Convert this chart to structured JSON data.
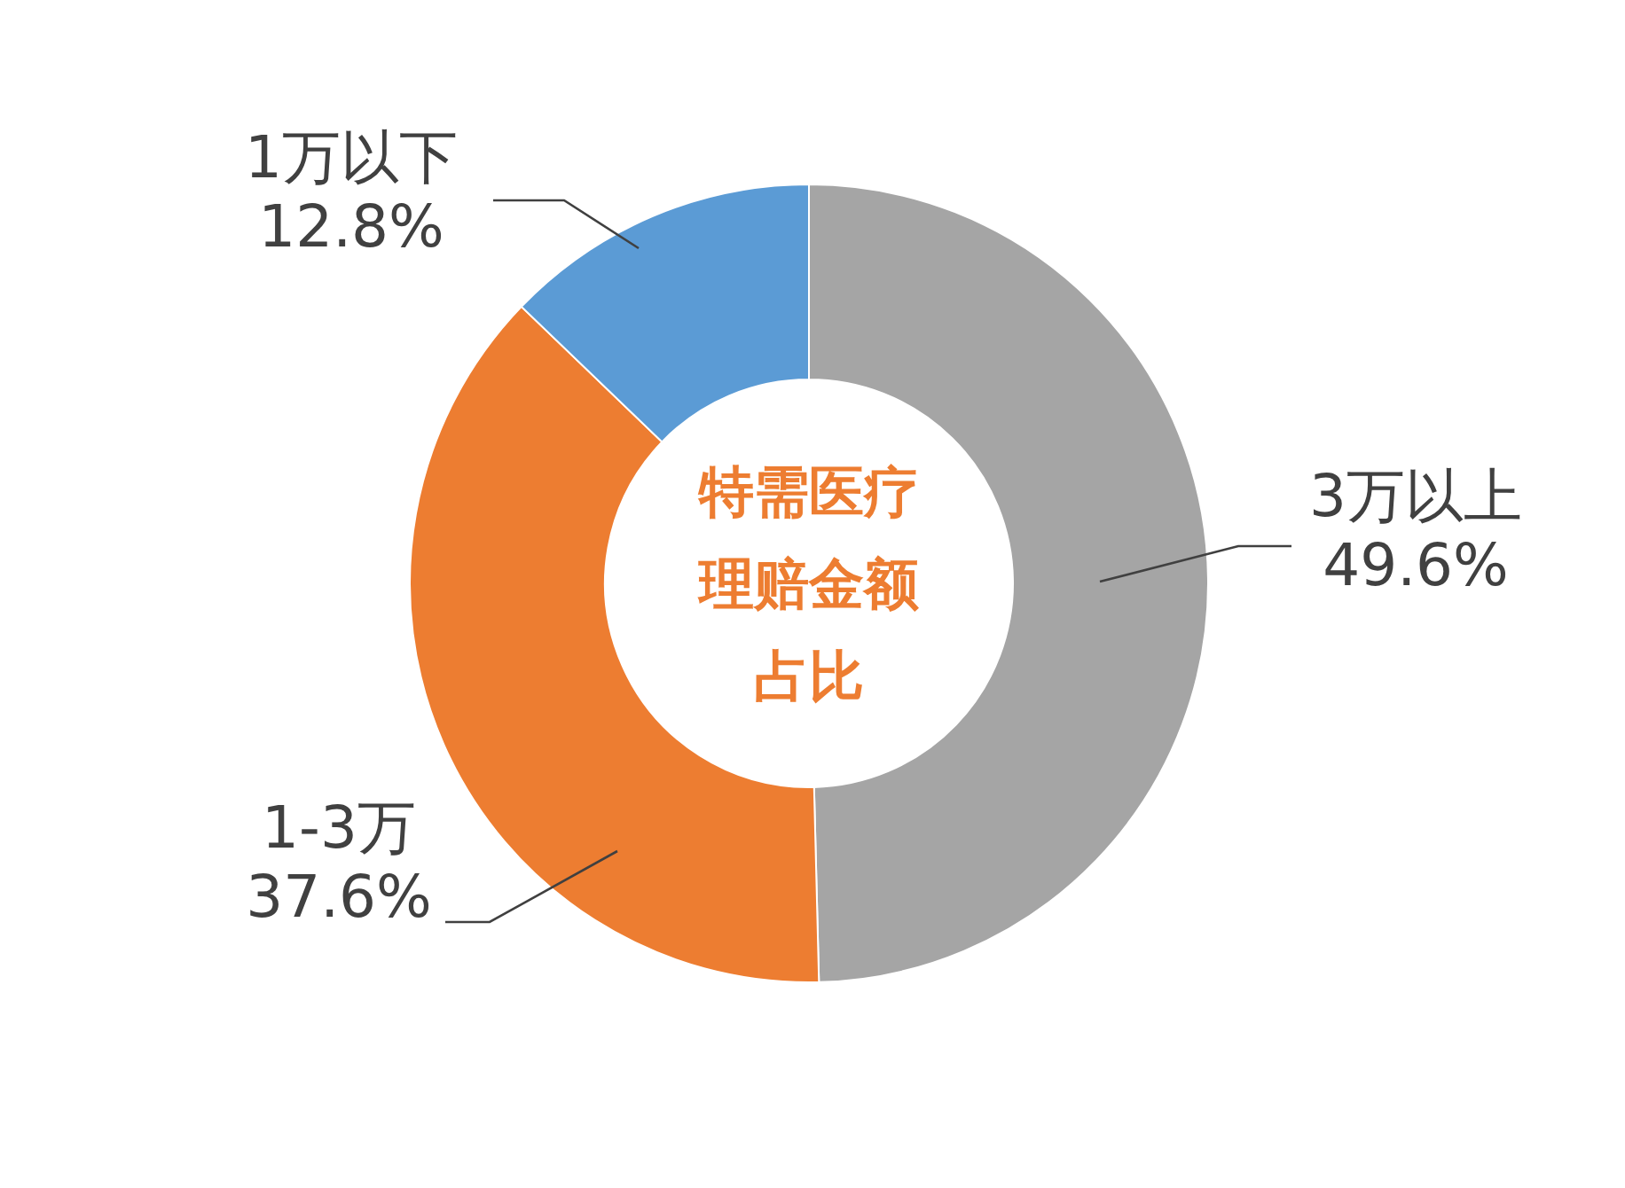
{
  "chart_data": {
    "type": "donut",
    "title": "特需医疗理赔金额占比",
    "categories": [
      "3万以上",
      "1-3万",
      "1万以下"
    ],
    "values": [
      49.6,
      37.6,
      12.8
    ],
    "value_labels": [
      "49.6%",
      "37.6%",
      "12.8%"
    ],
    "colors": [
      "#a5a5a5",
      "#ed7d31",
      "#5b9bd5"
    ],
    "legend": false
  }
}
